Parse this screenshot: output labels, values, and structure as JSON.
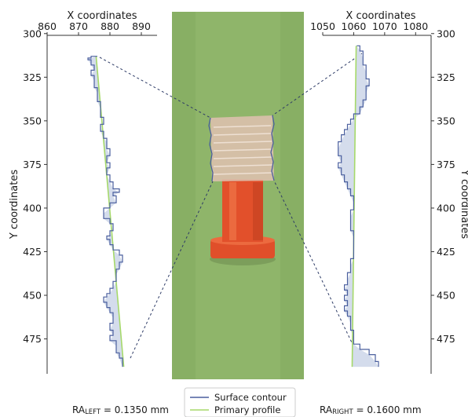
{
  "colors": {
    "surface": "#4a5f9e",
    "surface_fill": "#d4dcec",
    "primary": "#a6d96a",
    "photo_bg": "#8fb56a",
    "orange": "#e2502b",
    "transparent_part": "#d9b5a2",
    "connector": "#2d3b66"
  },
  "legend": {
    "surface_label": "Surface contour",
    "primary_label": "Primary profile"
  },
  "ra_left": {
    "main": "RA",
    "sub": "LEFT",
    "rest": " = 0.1350 mm"
  },
  "ra_right": {
    "main": "RA",
    "sub": "RIGHT",
    "rest": " = 0.1600 mm"
  },
  "chart_data": [
    {
      "type": "line",
      "panel": "left",
      "xlabel": "X coordinates",
      "ylabel": "Y coordinates",
      "xlim": [
        860,
        895
      ],
      "ylim": [
        301,
        495
      ],
      "y_inverted": true,
      "x_ticks": [
        860,
        870,
        880,
        890
      ],
      "y_ticks": [
        300,
        325,
        350,
        375,
        400,
        425,
        450,
        475
      ],
      "series": [
        {
          "name": "Surface contour",
          "points": [
            [
              876,
              313
            ],
            [
              874,
              314
            ],
            [
              873,
              315
            ],
            [
              874,
              318
            ],
            [
              875,
              321
            ],
            [
              874,
              324
            ],
            [
              875,
              327
            ],
            [
              875,
              331
            ],
            [
              876,
              334
            ],
            [
              876,
              339
            ],
            [
              877,
              343
            ],
            [
              877,
              348
            ],
            [
              878,
              352
            ],
            [
              877,
              356
            ],
            [
              878,
              360
            ],
            [
              879,
              362
            ],
            [
              879,
              366
            ],
            [
              880,
              370
            ],
            [
              879,
              374
            ],
            [
              880,
              377
            ],
            [
              879,
              381
            ],
            [
              880,
              385
            ],
            [
              881,
              389
            ],
            [
              883,
              391
            ],
            [
              881,
              393
            ],
            [
              882,
              397
            ],
            [
              880,
              400
            ],
            [
              878,
              403
            ],
            [
              878,
              406
            ],
            [
              880,
              409
            ],
            [
              881,
              413
            ],
            [
              880,
              416
            ],
            [
              879,
              418
            ],
            [
              880,
              421
            ],
            [
              881,
              424
            ],
            [
              883,
              427
            ],
            [
              884,
              431
            ],
            [
              883,
              435
            ],
            [
              882,
              438
            ],
            [
              882,
              442
            ],
            [
              881,
              446
            ],
            [
              880,
              449
            ],
            [
              879,
              451
            ],
            [
              878,
              454
            ],
            [
              879,
              457
            ],
            [
              880,
              460
            ],
            [
              881,
              463
            ],
            [
              881,
              466
            ],
            [
              880,
              470
            ],
            [
              881,
              473
            ],
            [
              880,
              476
            ],
            [
              882,
              479
            ],
            [
              882,
              483
            ],
            [
              883,
              486
            ],
            [
              884,
              491
            ]
          ]
        },
        {
          "name": "Primary profile",
          "points": [
            [
              875.6,
              313
            ],
            [
              884.4,
              491
            ]
          ]
        }
      ]
    },
    {
      "type": "line",
      "panel": "right",
      "xlabel": "X coordinates",
      "ylabel": "Y coordinates",
      "xlim": [
        1050,
        1085
      ],
      "ylim": [
        301,
        495
      ],
      "y_inverted": true,
      "x_ticks": [
        1050,
        1060,
        1070,
        1080
      ],
      "y_ticks": [
        300,
        325,
        350,
        375,
        400,
        425,
        450,
        475
      ],
      "series": [
        {
          "name": "Surface contour",
          "points": [
            [
              1061,
              307
            ],
            [
              1062,
              310
            ],
            [
              1063,
              314
            ],
            [
              1063,
              318
            ],
            [
              1064,
              322
            ],
            [
              1064,
              326
            ],
            [
              1065,
              330
            ],
            [
              1064,
              334
            ],
            [
              1064,
              338
            ],
            [
              1063,
              342
            ],
            [
              1062,
              346
            ],
            [
              1060,
              349
            ],
            [
              1059,
              352
            ],
            [
              1058,
              355
            ],
            [
              1057,
              358
            ],
            [
              1056,
              362
            ],
            [
              1055,
              366
            ],
            [
              1055,
              370
            ],
            [
              1056,
              374
            ],
            [
              1055,
              377
            ],
            [
              1056,
              381
            ],
            [
              1057,
              385
            ],
            [
              1058,
              389
            ],
            [
              1059,
              393
            ],
            [
              1060,
              397
            ],
            [
              1060,
              401
            ],
            [
              1059,
              405
            ],
            [
              1059,
              409
            ],
            [
              1059,
              413
            ],
            [
              1060,
              417
            ],
            [
              1060,
              421
            ],
            [
              1060,
              425
            ],
            [
              1060,
              429
            ],
            [
              1059,
              433
            ],
            [
              1059,
              437
            ],
            [
              1058,
              441
            ],
            [
              1058,
              444
            ],
            [
              1057,
              447
            ],
            [
              1058,
              450
            ],
            [
              1057,
              453
            ],
            [
              1058,
              456
            ],
            [
              1057,
              459
            ],
            [
              1058,
              462
            ],
            [
              1059,
              466
            ],
            [
              1059,
              470
            ],
            [
              1060,
              474
            ],
            [
              1060,
              478
            ],
            [
              1062,
              481
            ],
            [
              1065,
              484
            ],
            [
              1067,
              488
            ],
            [
              1068,
              491
            ]
          ]
        },
        {
          "name": "Primary profile",
          "points": [
            [
              1060.8,
              307
            ],
            [
              1059.5,
              491
            ]
          ]
        }
      ]
    }
  ]
}
